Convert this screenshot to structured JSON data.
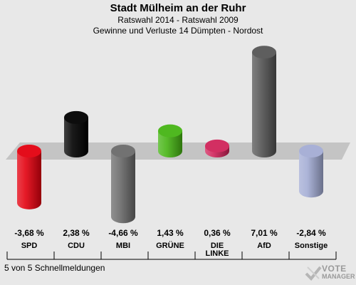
{
  "header": {
    "title": "Stadt Mülheim an der Ruhr",
    "subtitle1": "Ratswahl 2014 - Ratswahl 2009",
    "subtitle2": "Gewinne und Verluste 14 Dümpten - Nordost"
  },
  "footer": {
    "status": "5 von 5 Schnellmeldungen"
  },
  "logo": {
    "line1": "VOTE",
    "line2": "MANAGER"
  },
  "chart_data": {
    "type": "bar",
    "categories": [
      "SPD",
      "CDU",
      "MBI",
      "GRÜNE",
      "DIE LINKE",
      "AfD",
      "Sonstige"
    ],
    "category_lines": [
      [
        "SPD"
      ],
      [
        "CDU"
      ],
      [
        "MBI"
      ],
      [
        "GRÜNE"
      ],
      [
        "DIE",
        "LINKE"
      ],
      [
        "AfD"
      ],
      [
        "Sonstige"
      ]
    ],
    "values": [
      -3.68,
      2.38,
      -4.66,
      1.43,
      0.36,
      7.01,
      -2.84
    ],
    "value_labels": [
      "-3,68 %",
      "2,38 %",
      "-4,66 %",
      "1,43 %",
      "0,36 %",
      "7,01 %",
      "-2,84 %"
    ],
    "colors": [
      "#e3000f",
      "#000000",
      "#6b6b6b",
      "#46b414",
      "#d0245a",
      "#555555",
      "#a3acd4"
    ],
    "ylim": [
      -5.5,
      7.5
    ],
    "grid": false
  }
}
